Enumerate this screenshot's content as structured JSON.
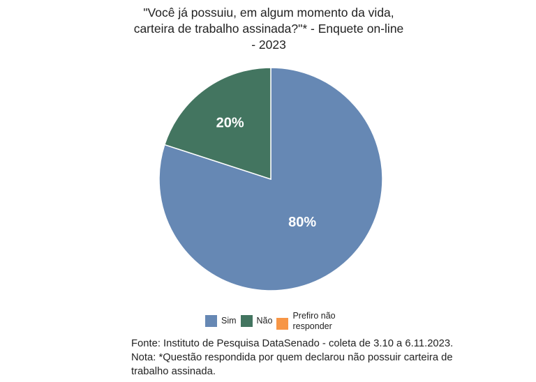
{
  "title_lines": [
    "\"Você já possuiu, em algum momento da vida,",
    "carteira de trabalho assinada?\"* - Enquete on-line",
    "- 2023"
  ],
  "chart_data": {
    "type": "pie",
    "title": "\"Você já possuiu, em algum momento da vida, carteira de trabalho assinada?\"* - Enquete on-line - 2023",
    "slices": [
      {
        "label": "Sim",
        "value": 80,
        "display": "80%",
        "color": "#6688b4"
      },
      {
        "label": "Não",
        "value": 20,
        "display": "20%",
        "color": "#437560"
      },
      {
        "label": "Prefiro não responder",
        "value": 0,
        "display": "",
        "color": "#f79646"
      }
    ],
    "legend_position": "bottom"
  },
  "legend": [
    {
      "label": "Sim",
      "color": "#6688b4"
    },
    {
      "label": "Não",
      "color": "#437560"
    },
    {
      "label": "Prefiro não responder",
      "color": "#f79646"
    }
  ],
  "footnotes": {
    "source": "Fonte: Instituto de Pesquisa DataSenado - coleta de 3.10 a 6.11.2023.",
    "note_line1": "Nota: *Questão respondida por quem declarou não possuir carteira de",
    "note_line2": "trabalho assinada."
  }
}
